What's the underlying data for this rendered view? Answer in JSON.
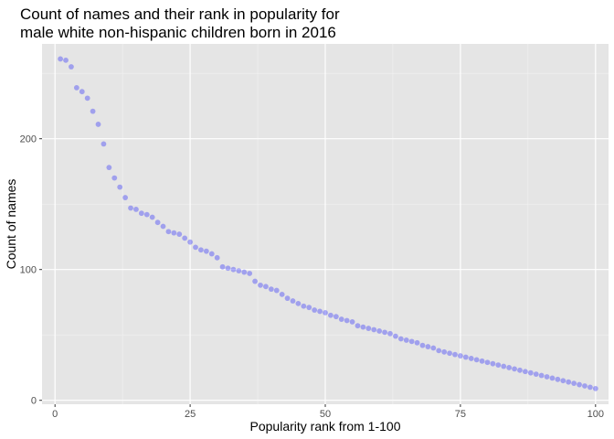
{
  "chart_data": {
    "type": "scatter",
    "title_line1": "Count of names and their rank in popularity for",
    "title_line2": "male white non-hispanic children born in 2016",
    "xlabel": "Popularity rank from 1-100",
    "ylabel": "Count of names",
    "xlim": [
      -2.4,
      102.4
    ],
    "ylim": [
      -3,
      272.5
    ],
    "x_ticks": [
      0,
      25,
      50,
      75,
      100
    ],
    "y_ticks": [
      0,
      100,
      200
    ],
    "grid": true,
    "point_color": "#0000ff",
    "points": [
      {
        "x": 1,
        "y": 261
      },
      {
        "x": 2,
        "y": 260
      },
      {
        "x": 3,
        "y": 255
      },
      {
        "x": 4,
        "y": 239
      },
      {
        "x": 5,
        "y": 236
      },
      {
        "x": 6,
        "y": 231
      },
      {
        "x": 7,
        "y": 221
      },
      {
        "x": 8,
        "y": 211
      },
      {
        "x": 9,
        "y": 196
      },
      {
        "x": 10,
        "y": 178
      },
      {
        "x": 11,
        "y": 170
      },
      {
        "x": 12,
        "y": 163
      },
      {
        "x": 13,
        "y": 155
      },
      {
        "x": 14,
        "y": 147
      },
      {
        "x": 15,
        "y": 146
      },
      {
        "x": 16,
        "y": 143
      },
      {
        "x": 17,
        "y": 142
      },
      {
        "x": 18,
        "y": 140
      },
      {
        "x": 19,
        "y": 136
      },
      {
        "x": 20,
        "y": 133
      },
      {
        "x": 21,
        "y": 129
      },
      {
        "x": 22,
        "y": 128
      },
      {
        "x": 23,
        "y": 127
      },
      {
        "x": 24,
        "y": 124
      },
      {
        "x": 25,
        "y": 121
      },
      {
        "x": 26,
        "y": 117
      },
      {
        "x": 27,
        "y": 115
      },
      {
        "x": 28,
        "y": 114
      },
      {
        "x": 29,
        "y": 112
      },
      {
        "x": 30,
        "y": 109
      },
      {
        "x": 31,
        "y": 102
      },
      {
        "x": 32,
        "y": 101
      },
      {
        "x": 33,
        "y": 100
      },
      {
        "x": 34,
        "y": 99
      },
      {
        "x": 35,
        "y": 98
      },
      {
        "x": 36,
        "y": 97
      },
      {
        "x": 37,
        "y": 91
      },
      {
        "x": 38,
        "y": 88
      },
      {
        "x": 39,
        "y": 87
      },
      {
        "x": 40,
        "y": 85
      },
      {
        "x": 41,
        "y": 84
      },
      {
        "x": 42,
        "y": 81
      },
      {
        "x": 43,
        "y": 78
      },
      {
        "x": 44,
        "y": 76
      },
      {
        "x": 45,
        "y": 74
      },
      {
        "x": 46,
        "y": 72
      },
      {
        "x": 47,
        "y": 71
      },
      {
        "x": 48,
        "y": 69
      },
      {
        "x": 49,
        "y": 68
      },
      {
        "x": 50,
        "y": 67
      },
      {
        "x": 51,
        "y": 65
      },
      {
        "x": 52,
        "y": 64
      },
      {
        "x": 53,
        "y": 62
      },
      {
        "x": 54,
        "y": 61
      },
      {
        "x": 55,
        "y": 60
      },
      {
        "x": 56,
        "y": 57
      },
      {
        "x": 57,
        "y": 56
      },
      {
        "x": 58,
        "y": 55
      },
      {
        "x": 59,
        "y": 54
      },
      {
        "x": 60,
        "y": 53
      },
      {
        "x": 61,
        "y": 52
      },
      {
        "x": 62,
        "y": 51
      },
      {
        "x": 63,
        "y": 49
      },
      {
        "x": 64,
        "y": 47
      },
      {
        "x": 65,
        "y": 46
      },
      {
        "x": 66,
        "y": 45
      },
      {
        "x": 67,
        "y": 44
      },
      {
        "x": 68,
        "y": 42
      },
      {
        "x": 69,
        "y": 41
      },
      {
        "x": 70,
        "y": 40
      },
      {
        "x": 71,
        "y": 38
      },
      {
        "x": 72,
        "y": 37
      },
      {
        "x": 73,
        "y": 36
      },
      {
        "x": 74,
        "y": 35
      },
      {
        "x": 75,
        "y": 34
      },
      {
        "x": 76,
        "y": 33
      },
      {
        "x": 77,
        "y": 32
      },
      {
        "x": 78,
        "y": 31
      },
      {
        "x": 79,
        "y": 30
      },
      {
        "x": 80,
        "y": 29
      },
      {
        "x": 81,
        "y": 28
      },
      {
        "x": 82,
        "y": 27
      },
      {
        "x": 83,
        "y": 26
      },
      {
        "x": 84,
        "y": 25
      },
      {
        "x": 85,
        "y": 24
      },
      {
        "x": 86,
        "y": 23
      },
      {
        "x": 87,
        "y": 22
      },
      {
        "x": 88,
        "y": 21
      },
      {
        "x": 89,
        "y": 20
      },
      {
        "x": 90,
        "y": 19
      },
      {
        "x": 91,
        "y": 18
      },
      {
        "x": 92,
        "y": 17
      },
      {
        "x": 93,
        "y": 16
      },
      {
        "x": 94,
        "y": 15
      },
      {
        "x": 95,
        "y": 14
      },
      {
        "x": 96,
        "y": 13
      },
      {
        "x": 97,
        "y": 12
      },
      {
        "x": 98,
        "y": 11
      },
      {
        "x": 99,
        "y": 10
      },
      {
        "x": 100,
        "y": 9
      }
    ]
  }
}
